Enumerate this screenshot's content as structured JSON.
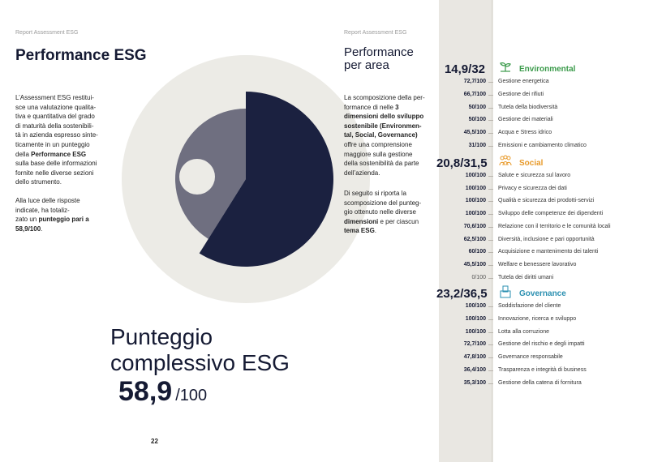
{
  "left": {
    "header": "Report Assessment ESG",
    "title": "Performance ESG",
    "intro_a": "L’Assessment ESG restitui-\nsce una valutazione qualita-\ntiva e quantitativa del grado\ndi maturità della sostenibili-\ntà in azienda espresso sinte-\nticamente in un punteggio\ndella ",
    "intro_b": "Performance ESG",
    "intro_c": "\nsulla base delle informazioni\nfornite nelle diverse sezioni\ndello strumento.",
    "result_a": "Alla luce delle risposte\nindicate,              ha totaliz-\nzato un ",
    "result_b": "punteggio pari a\n58,9/100",
    "result_c": ".",
    "big_title": "Punteggio\ncomplessivo ESG",
    "score_value": "58,9",
    "score_of": "/100",
    "page_number": "22"
  },
  "chart_data": {
    "type": "pie",
    "title": "",
    "values": [
      58.9,
      41.1
    ],
    "max": 100,
    "colors": [
      "#1b2140",
      "#6f6f80",
      "#ecebe6"
    ]
  },
  "right": {
    "header": "Report Assessment ESG",
    "title": "Performance\nper area",
    "desc_a": "La scomposizione della per-\nformance di                nelle ",
    "desc_b": "3\ndimensioni dello sviluppo\nsostenibile (Environmen-\ntal, Social, Governance)",
    "desc_c": "\noffre una comprensione\nmaggiore sulla gestione\ndella sostenibilità da parte\ndell’azienda.",
    "desc2_a": "Di seguito si riporta la\nscomposizione del punteg-\ngio ottenuto nelle diverse\n",
    "desc2_b": "dimensioni",
    "desc2_c": " e per ciascun\n",
    "desc2_d": "tema ESG",
    "desc2_e": ".",
    "sections": [
      {
        "total": "14,9/32",
        "name": "Environmental",
        "color": "#3a9a4a",
        "icon": "plant-icon",
        "rows": [
          {
            "value": "72,7/100",
            "label": "Gestione energetica"
          },
          {
            "value": "66,7/100",
            "label": "Gestione dei rifiuti"
          },
          {
            "value": "50/100",
            "label": "Tutela della biodiversità"
          },
          {
            "value": "50/100",
            "label": "Gestione dei materiali"
          },
          {
            "value": "45,5/100",
            "label": "Acqua e Stress idrico"
          },
          {
            "value": "31/100",
            "label": "Emissioni e cambiamento climatico"
          }
        ]
      },
      {
        "total": "20,8/31,5",
        "name": "Social",
        "color": "#e89a2a",
        "icon": "people-icon",
        "rows": [
          {
            "value": "100/100",
            "label": "Salute e sicurezza sul lavoro"
          },
          {
            "value": "100/100",
            "label": "Privacy e sicurezza dei dati"
          },
          {
            "value": "100/100",
            "label": "Qualità e sicurezza dei prodotti-servizi"
          },
          {
            "value": "100/100",
            "label": "Sviluppo delle competenze dei dipendenti"
          },
          {
            "value": "70,6/100",
            "label": "Relazione con il territorio e le comunità locali"
          },
          {
            "value": "62,5/100",
            "label": "Diversità, inclusione e pari opportunità"
          },
          {
            "value": "60/100",
            "label": "Acquisizione e mantenimento dei talenti"
          },
          {
            "value": "45,5/100",
            "label": "Welfare e benessere lavorativo"
          },
          {
            "value": "0/100",
            "label": "Tutela dei diritti umani",
            "light": true
          }
        ]
      },
      {
        "total": "23,2/36,5",
        "name": "Governance",
        "color": "#2a8fb0",
        "icon": "ballot-box-icon",
        "rows": [
          {
            "value": "100/100",
            "label": "Soddisfazione del cliente"
          },
          {
            "value": "100/100",
            "label": "Innovazione, ricerca e sviluppo"
          },
          {
            "value": "100/100",
            "label": "Lotta alla corruzione"
          },
          {
            "value": "72,7/100",
            "label": "Gestione del rischio e degli impatti"
          },
          {
            "value": "47,8/100",
            "label": "Governance responsabile"
          },
          {
            "value": "36,4/100",
            "label": "Trasparenza e integrità di business"
          },
          {
            "value": "35,3/100",
            "label": "Gestione della catena di fornitura"
          }
        ]
      }
    ]
  }
}
